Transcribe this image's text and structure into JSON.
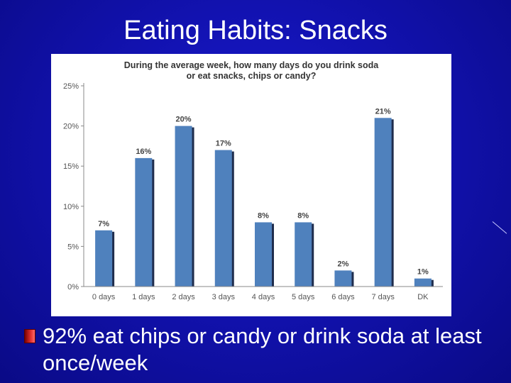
{
  "slide": {
    "title": "Eating Habits: Snacks",
    "bullet": "92% eat chips or candy or drink soda at least once/week"
  },
  "colors": {
    "background": "#1212b0",
    "bar": "#4f81bd",
    "bar_shadow": "#1f2d4d",
    "bullet_marker": "#d42020"
  },
  "chart_data": {
    "type": "bar",
    "title": "During the average week, how many days do you drink soda or eat snacks, chips or candy?",
    "categories": [
      "0 days",
      "1 days",
      "2 days",
      "3 days",
      "4 days",
      "5 days",
      "6 days",
      "7 days",
      "DK"
    ],
    "values": [
      7,
      16,
      20,
      17,
      8,
      8,
      2,
      21,
      1
    ],
    "data_labels": [
      "7%",
      "16%",
      "20%",
      "17%",
      "8%",
      "8%",
      "2%",
      "21%",
      "1%"
    ],
    "yticks": [
      "0%",
      "5%",
      "10%",
      "15%",
      "20%",
      "25%"
    ],
    "ylim": [
      0,
      25
    ],
    "grid": false,
    "legend": "none"
  }
}
